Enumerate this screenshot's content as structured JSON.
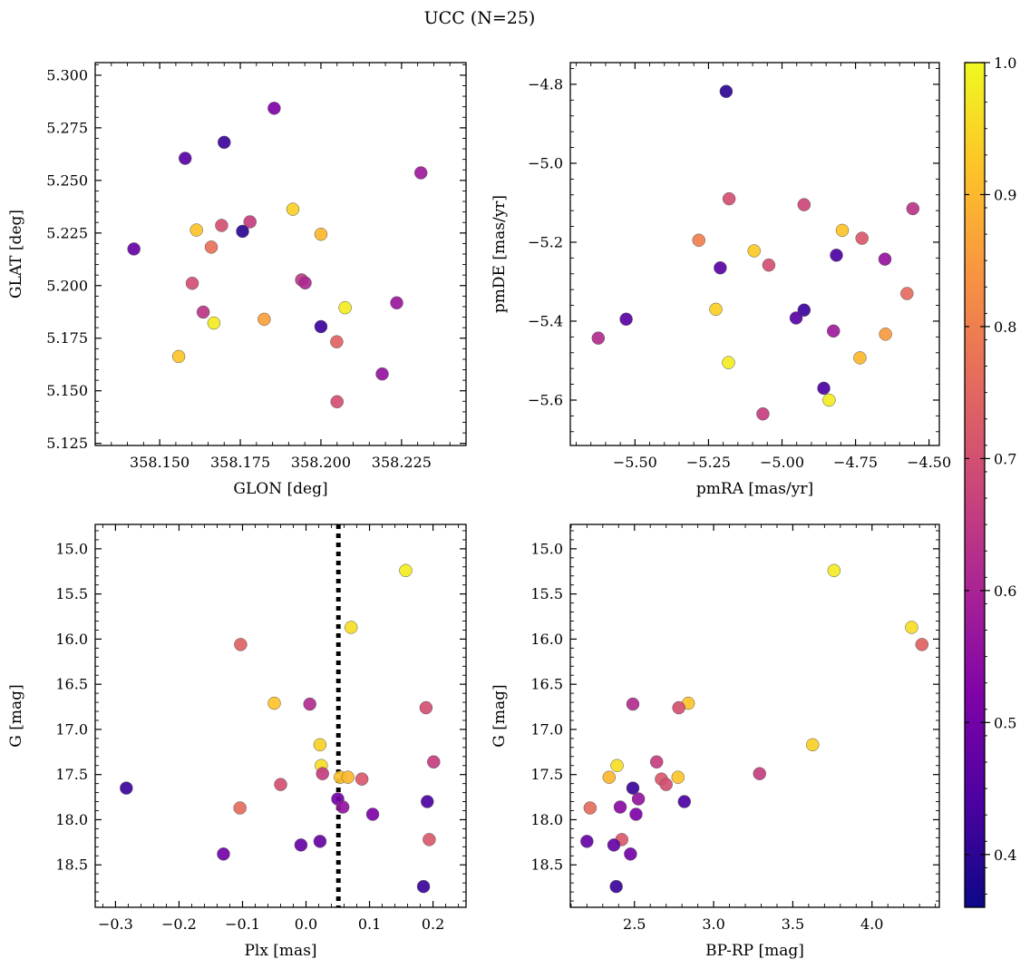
{
  "figure": {
    "title": "UCC (N=25)"
  },
  "colorbar": {
    "range": [
      0.36,
      1.0
    ],
    "ticks": [
      0.4,
      0.5,
      0.6,
      0.7,
      0.8,
      0.9,
      1.0
    ],
    "tick_labels": [
      "0.4",
      "0.5",
      "0.6",
      "0.7",
      "0.8",
      "0.9",
      "1.0"
    ],
    "colormap": "plasma"
  },
  "chart_data": [
    {
      "type": "scatter",
      "xlabel": "GLON [deg]",
      "ylabel": "GLAT [deg]",
      "xlim": [
        358.13,
        358.245
      ],
      "ylim": [
        5.124,
        5.306
      ],
      "xticks": [
        358.15,
        358.175,
        358.2,
        358.225
      ],
      "xtick_labels": [
        "358.150",
        "358.175",
        "358.200",
        "358.225"
      ],
      "yticks": [
        5.125,
        5.15,
        5.175,
        5.2,
        5.225,
        5.25,
        5.275,
        5.3
      ],
      "ytick_labels": [
        "5.125",
        "5.150",
        "5.175",
        "5.200",
        "5.225",
        "5.250",
        "5.275",
        "5.300"
      ],
      "points": [
        {
          "x": 358.1855,
          "y": 5.2843,
          "c": 0.52
        },
        {
          "x": 358.17,
          "y": 5.2681,
          "c": 0.42
        },
        {
          "x": 358.1579,
          "y": 5.2605,
          "c": 0.46
        },
        {
          "x": 358.231,
          "y": 5.2536,
          "c": 0.58
        },
        {
          "x": 358.1913,
          "y": 5.2363,
          "c": 0.94
        },
        {
          "x": 358.178,
          "y": 5.2303,
          "c": 0.66
        },
        {
          "x": 358.1692,
          "y": 5.2286,
          "c": 0.7
        },
        {
          "x": 358.1614,
          "y": 5.2264,
          "c": 0.92
        },
        {
          "x": 358.1757,
          "y": 5.2258,
          "c": 0.4
        },
        {
          "x": 358.2,
          "y": 5.2244,
          "c": 0.9
        },
        {
          "x": 358.166,
          "y": 5.2183,
          "c": 0.77
        },
        {
          "x": 358.142,
          "y": 5.2174,
          "c": 0.48
        },
        {
          "x": 358.194,
          "y": 5.2027,
          "c": 0.65
        },
        {
          "x": 358.1951,
          "y": 5.2013,
          "c": 0.61
        },
        {
          "x": 358.1601,
          "y": 5.2011,
          "c": 0.7
        },
        {
          "x": 358.2075,
          "y": 5.1895,
          "c": 0.98
        },
        {
          "x": 358.2235,
          "y": 5.1918,
          "c": 0.57
        },
        {
          "x": 358.1635,
          "y": 5.1874,
          "c": 0.64
        },
        {
          "x": 358.1824,
          "y": 5.184,
          "c": 0.86
        },
        {
          "x": 358.1668,
          "y": 5.1822,
          "c": 0.98
        },
        {
          "x": 358.2,
          "y": 5.1805,
          "c": 0.42
        },
        {
          "x": 358.2049,
          "y": 5.1733,
          "c": 0.74
        },
        {
          "x": 358.1559,
          "y": 5.1663,
          "c": 0.92
        },
        {
          "x": 358.219,
          "y": 5.158,
          "c": 0.56
        },
        {
          "x": 358.205,
          "y": 5.1448,
          "c": 0.7
        }
      ]
    },
    {
      "type": "scatter",
      "xlabel": "pmRA [mas/yr]",
      "ylabel": "pmDE [mas/yr]",
      "xlim": [
        -5.72,
        -4.465
      ],
      "ylim": [
        -5.715,
        -4.745
      ],
      "xticks": [
        -5.5,
        -5.25,
        -5.0,
        -4.75,
        -4.5
      ],
      "xtick_labels": [
        "−5.50",
        "−5.25",
        "−5.00",
        "−4.75",
        "−4.50"
      ],
      "yticks": [
        -5.6,
        -5.4,
        -5.2,
        -5.0,
        -4.8
      ],
      "ytick_labels": [
        "−5.6",
        "−5.4",
        "−5.2",
        "−5.0",
        "−4.8"
      ],
      "points": [
        {
          "x": -5.19,
          "y": -4.818,
          "c": 0.4
        },
        {
          "x": -5.18,
          "y": -5.09,
          "c": 0.7
        },
        {
          "x": -4.925,
          "y": -5.105,
          "c": 0.68
        },
        {
          "x": -4.555,
          "y": -5.115,
          "c": 0.64
        },
        {
          "x": -4.795,
          "y": -5.17,
          "c": 0.92
        },
        {
          "x": -4.728,
          "y": -5.19,
          "c": 0.72
        },
        {
          "x": -5.283,
          "y": -5.195,
          "c": 0.8
        },
        {
          "x": -5.095,
          "y": -5.222,
          "c": 0.93
        },
        {
          "x": -4.815,
          "y": -5.233,
          "c": 0.44
        },
        {
          "x": -4.65,
          "y": -5.243,
          "c": 0.56
        },
        {
          "x": -5.045,
          "y": -5.258,
          "c": 0.7
        },
        {
          "x": -5.21,
          "y": -5.265,
          "c": 0.46
        },
        {
          "x": -4.575,
          "y": -5.33,
          "c": 0.76
        },
        {
          "x": -5.225,
          "y": -5.37,
          "c": 0.94
        },
        {
          "x": -4.925,
          "y": -5.372,
          "c": 0.42
        },
        {
          "x": -4.952,
          "y": -5.392,
          "c": 0.46
        },
        {
          "x": -5.53,
          "y": -5.395,
          "c": 0.46
        },
        {
          "x": -4.825,
          "y": -5.425,
          "c": 0.58
        },
        {
          "x": -4.648,
          "y": -5.433,
          "c": 0.85
        },
        {
          "x": -5.625,
          "y": -5.443,
          "c": 0.62
        },
        {
          "x": -4.735,
          "y": -5.493,
          "c": 0.9
        },
        {
          "x": -5.182,
          "y": -5.505,
          "c": 0.98
        },
        {
          "x": -4.858,
          "y": -5.57,
          "c": 0.44
        },
        {
          "x": -4.84,
          "y": -5.6,
          "c": 0.98
        },
        {
          "x": -5.065,
          "y": -5.635,
          "c": 0.66
        }
      ]
    },
    {
      "type": "scatter",
      "xlabel": "Plx [mas]",
      "ylabel": "G [mag]",
      "xlim": [
        -0.332,
        0.252
      ],
      "ylim": [
        18.97,
        14.73
      ],
      "xticks": [
        -0.3,
        -0.2,
        -0.1,
        0.0,
        0.1,
        0.2
      ],
      "xtick_labels": [
        "−0.3",
        "−0.2",
        "−0.1",
        "0.0",
        "0.1",
        "0.2"
      ],
      "yticks": [
        15.0,
        15.5,
        16.0,
        16.5,
        17.0,
        17.5,
        18.0,
        18.5
      ],
      "ytick_labels": [
        "15.0",
        "15.5",
        "16.0",
        "16.5",
        "17.0",
        "17.5",
        "18.0",
        "18.5"
      ],
      "vline": {
        "x": 0.051,
        "style": "dotted"
      },
      "points": [
        {
          "x": 0.157,
          "y": 15.24,
          "c": 0.98
        },
        {
          "x": 0.071,
          "y": 15.87,
          "c": 0.96
        },
        {
          "x": -0.103,
          "y": 16.06,
          "c": 0.74
        },
        {
          "x": -0.05,
          "y": 16.71,
          "c": 0.92
        },
        {
          "x": 0.006,
          "y": 16.72,
          "c": 0.62
        },
        {
          "x": 0.189,
          "y": 16.76,
          "c": 0.7
        },
        {
          "x": 0.022,
          "y": 17.17,
          "c": 0.94
        },
        {
          "x": 0.201,
          "y": 17.36,
          "c": 0.66
        },
        {
          "x": 0.024,
          "y": 17.4,
          "c": 0.96
        },
        {
          "x": 0.026,
          "y": 17.49,
          "c": 0.66
        },
        {
          "x": 0.054,
          "y": 17.53,
          "c": 0.92
        },
        {
          "x": 0.066,
          "y": 17.53,
          "c": 0.9
        },
        {
          "x": 0.088,
          "y": 17.55,
          "c": 0.72
        },
        {
          "x": -0.04,
          "y": 17.61,
          "c": 0.7
        },
        {
          "x": -0.283,
          "y": 17.65,
          "c": 0.42
        },
        {
          "x": 0.05,
          "y": 17.77,
          "c": 0.5
        },
        {
          "x": 0.191,
          "y": 17.8,
          "c": 0.44
        },
        {
          "x": 0.058,
          "y": 17.86,
          "c": 0.56
        },
        {
          "x": -0.104,
          "y": 17.87,
          "c": 0.76
        },
        {
          "x": 0.105,
          "y": 17.94,
          "c": 0.52
        },
        {
          "x": 0.194,
          "y": 18.22,
          "c": 0.72
        },
        {
          "x": 0.022,
          "y": 18.24,
          "c": 0.48
        },
        {
          "x": -0.008,
          "y": 18.28,
          "c": 0.48
        },
        {
          "x": -0.13,
          "y": 18.38,
          "c": 0.5
        },
        {
          "x": 0.185,
          "y": 18.74,
          "c": 0.42
        }
      ]
    },
    {
      "type": "scatter",
      "xlabel": "BP-RP [mag]",
      "ylabel": "G [mag]",
      "xlim": [
        2.095,
        4.425
      ],
      "ylim": [
        18.97,
        14.73
      ],
      "xticks": [
        2.5,
        3.0,
        3.5,
        4.0
      ],
      "xtick_labels": [
        "2.5",
        "3.0",
        "3.5",
        "4.0"
      ],
      "yticks": [
        15.0,
        15.5,
        16.0,
        16.5,
        17.0,
        17.5,
        18.0,
        18.5
      ],
      "ytick_labels": [
        "15.0",
        "15.5",
        "16.0",
        "16.5",
        "17.0",
        "17.5",
        "18.0",
        "18.5"
      ],
      "points": [
        {
          "x": 3.76,
          "y": 15.24,
          "c": 0.98
        },
        {
          "x": 4.25,
          "y": 15.87,
          "c": 0.96
        },
        {
          "x": 4.315,
          "y": 16.06,
          "c": 0.74
        },
        {
          "x": 2.49,
          "y": 16.72,
          "c": 0.62
        },
        {
          "x": 2.84,
          "y": 16.71,
          "c": 0.92
        },
        {
          "x": 2.78,
          "y": 16.76,
          "c": 0.7
        },
        {
          "x": 3.625,
          "y": 17.17,
          "c": 0.94
        },
        {
          "x": 2.64,
          "y": 17.36,
          "c": 0.66
        },
        {
          "x": 2.39,
          "y": 17.4,
          "c": 0.96
        },
        {
          "x": 3.29,
          "y": 17.49,
          "c": 0.66
        },
        {
          "x": 2.34,
          "y": 17.53,
          "c": 0.9
        },
        {
          "x": 2.775,
          "y": 17.53,
          "c": 0.92
        },
        {
          "x": 2.67,
          "y": 17.55,
          "c": 0.72
        },
        {
          "x": 2.7,
          "y": 17.61,
          "c": 0.7
        },
        {
          "x": 2.49,
          "y": 17.65,
          "c": 0.42
        },
        {
          "x": 2.525,
          "y": 17.77,
          "c": 0.56
        },
        {
          "x": 2.815,
          "y": 17.8,
          "c": 0.44
        },
        {
          "x": 2.41,
          "y": 17.86,
          "c": 0.54
        },
        {
          "x": 2.22,
          "y": 17.87,
          "c": 0.76
        },
        {
          "x": 2.51,
          "y": 17.94,
          "c": 0.52
        },
        {
          "x": 2.42,
          "y": 18.22,
          "c": 0.72
        },
        {
          "x": 2.2,
          "y": 18.24,
          "c": 0.48
        },
        {
          "x": 2.37,
          "y": 18.28,
          "c": 0.48
        },
        {
          "x": 2.475,
          "y": 18.38,
          "c": 0.5
        },
        {
          "x": 2.385,
          "y": 18.74,
          "c": 0.42
        }
      ]
    }
  ]
}
